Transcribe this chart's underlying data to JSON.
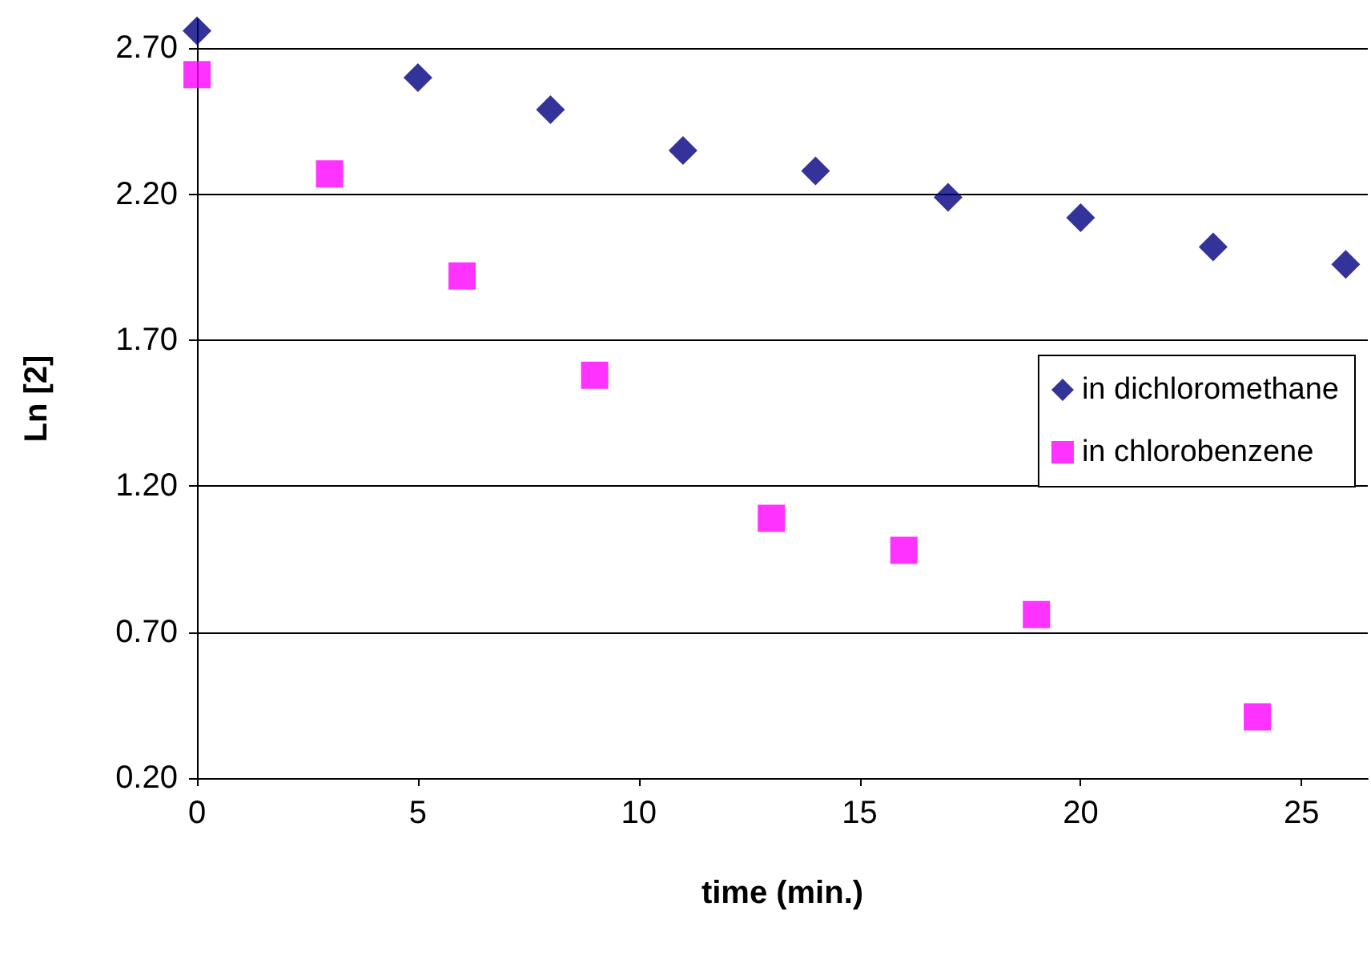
{
  "chart_data": {
    "type": "scatter",
    "xlabel": "time (min.)",
    "ylabel": "Ln [2]",
    "series": [
      {
        "name": "in dichloromethane",
        "color": "#000080",
        "marker": "diamond",
        "x": [
          0,
          5,
          8,
          11,
          14,
          17,
          20,
          23,
          26
        ],
        "values": [
          2.76,
          2.6,
          2.49,
          2.35,
          2.28,
          2.19,
          2.12,
          2.02,
          1.96
        ]
      },
      {
        "name": "in chlorobenzene",
        "color": "#ff00ff",
        "marker": "square",
        "x": [
          0,
          3,
          6,
          9,
          13,
          16,
          19,
          24
        ],
        "values": [
          2.61,
          2.27,
          1.92,
          1.58,
          1.09,
          0.98,
          0.76,
          0.41
        ]
      }
    ],
    "xlim": [
      0,
      26.5
    ],
    "xticks": [
      0,
      5,
      10,
      15,
      20,
      25
    ],
    "ylim": [
      0.2,
      2.8
    ],
    "yticks": [
      {
        "value": 0.2,
        "label": "0.20"
      },
      {
        "value": 0.7,
        "label": "0.70"
      },
      {
        "value": 1.2,
        "label": "1.20"
      },
      {
        "value": 1.7,
        "label": "1.70"
      },
      {
        "value": 2.2,
        "label": "2.20"
      },
      {
        "value": 2.7,
        "label": "2.70"
      }
    ],
    "grid": "y",
    "legend": "right"
  }
}
